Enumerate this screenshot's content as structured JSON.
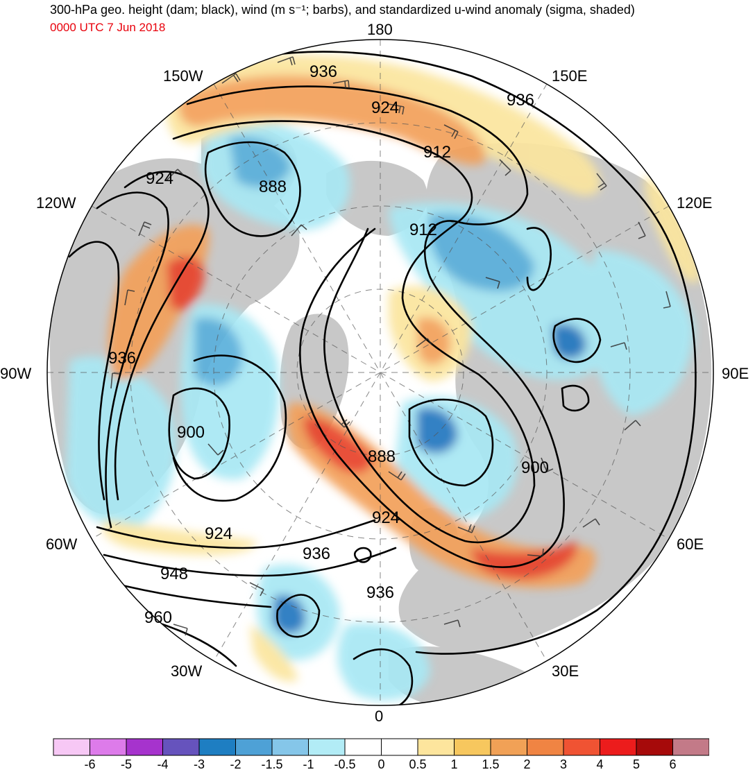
{
  "header": {
    "title": "300-hPa geo. height (dam; black), wind (m s⁻¹; barbs), and standardized u-wind anomaly (sigma, shaded)",
    "datetime": "0000 UTC 7 Jun 2018"
  },
  "map": {
    "projection": "north-polar-stereographic",
    "longitude_labels": {
      "top": "180",
      "bottom": "0",
      "left": "90W",
      "right": "90E",
      "upper_left": "150W",
      "upper_right": "150E",
      "mid_left_upper": "120W",
      "mid_right_upper": "120E",
      "mid_left_lower": "60W",
      "mid_right_lower": "60E",
      "lower_left": "30W",
      "lower_right": "30E"
    },
    "contour_labels": [
      "936",
      "924",
      "912",
      "888",
      "924",
      "912",
      "936",
      "900",
      "888",
      "900",
      "924",
      "924",
      "936",
      "948",
      "936",
      "960",
      "936"
    ],
    "colors": {
      "land": "#c8c8c8",
      "ocean": "#ffffff",
      "contour": "#000000",
      "neg_light": "#a8e8f4",
      "neg_mid": "#5ab0dc",
      "neg_dark": "#2277c0",
      "pos_light": "#fbe59e",
      "pos_mid": "#f3a05a",
      "pos_dark": "#e8432a"
    }
  },
  "colorbar": {
    "ticks": [
      "-6",
      "-5",
      "-4",
      "-3",
      "-2",
      "-1.5",
      "-1",
      "-0.5",
      "0",
      "0.5",
      "1",
      "1.5",
      "2",
      "3",
      "4",
      "5",
      "6"
    ],
    "colors": [
      "#f7c8f5",
      "#dd7bea",
      "#a633cd",
      "#6653bd",
      "#1e7ec2",
      "#4ea1d6",
      "#85c6e9",
      "#b2ecf6",
      "#ffffff",
      "#ffffff",
      "#fde59d",
      "#f7c75e",
      "#f1a156",
      "#f08443",
      "#f05333",
      "#ec1c1c",
      "#a60a0a",
      "#c37a88"
    ]
  }
}
